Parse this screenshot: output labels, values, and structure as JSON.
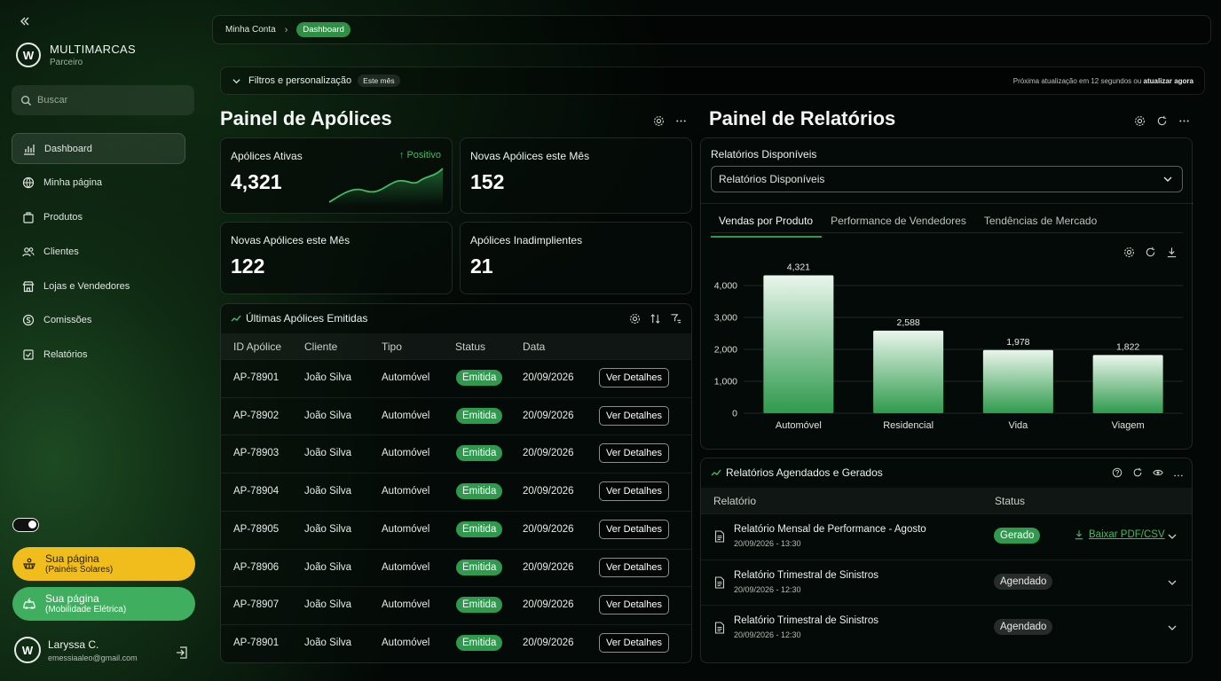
{
  "sidebar": {
    "brand_name": "MULTIMARCAS",
    "brand_sub": "Parceiro",
    "search_placeholder": "Buscar",
    "items": [
      {
        "label": "Dashboard",
        "icon": "chart-bars-icon"
      },
      {
        "label": "Minha página",
        "icon": "globe-icon"
      },
      {
        "label": "Produtos",
        "icon": "box-icon"
      },
      {
        "label": "Clientes",
        "icon": "users-icon"
      },
      {
        "label": "Lojas e Vendedores",
        "icon": "store-icon"
      },
      {
        "label": "Comissões",
        "icon": "coins-icon"
      },
      {
        "label": "Relatórios",
        "icon": "report-icon"
      }
    ],
    "active_item": "Dashboard",
    "promo1": {
      "title": "Sua página",
      "sub": "(Painéis Solares)"
    },
    "promo2": {
      "title": "Sua página",
      "sub": "(Mobilidade Elétrica)"
    },
    "user": {
      "name": "Laryssa C.",
      "email": "emessiaaleo@gmail.com"
    }
  },
  "breadcrumb": {
    "parent": "Minha Conta",
    "current": "Dashboard"
  },
  "filters": {
    "label": "Filtros e personalização",
    "chip": "Este mês",
    "refresh_note": "Próxima atualização em 12 segundos ou",
    "refresh_link": "atualizar agora"
  },
  "policies": {
    "title": "Painel de Apólices",
    "kpis": [
      {
        "label": "Apólices Ativas",
        "value": "4,321",
        "trend": "Positivo"
      },
      {
        "label": "Novas Apólices este Mês",
        "value": "152"
      },
      {
        "label": "Novas Apólices este Mês",
        "value": "122"
      },
      {
        "label": "Apólices Inadimplientes",
        "value": "21"
      }
    ],
    "table": {
      "title": "Últimas Apólices Emitidas",
      "columns": [
        "ID Apólice",
        "Cliente",
        "Tipo",
        "Status",
        "Data"
      ],
      "action_label": "Ver Detalhes",
      "rows": [
        {
          "id": "AP-78901",
          "client": "João Silva",
          "type": "Automóvel",
          "status": "Emitida",
          "date": "20/09/2026"
        },
        {
          "id": "AP-78902",
          "client": "João Silva",
          "type": "Automóvel",
          "status": "Emitida",
          "date": "20/09/2026"
        },
        {
          "id": "AP-78903",
          "client": "João Silva",
          "type": "Automóvel",
          "status": "Emitida",
          "date": "20/09/2026"
        },
        {
          "id": "AP-78904",
          "client": "João Silva",
          "type": "Automóvel",
          "status": "Emitida",
          "date": "20/09/2026"
        },
        {
          "id": "AP-78905",
          "client": "João Silva",
          "type": "Automóvel",
          "status": "Emitida",
          "date": "20/09/2026"
        },
        {
          "id": "AP-78906",
          "client": "João Silva",
          "type": "Automóvel",
          "status": "Emitida",
          "date": "20/09/2026"
        },
        {
          "id": "AP-78907",
          "client": "João Silva",
          "type": "Automóvel",
          "status": "Emitida",
          "date": "20/09/2026"
        },
        {
          "id": "AP-78901",
          "client": "João Silva",
          "type": "Automóvel",
          "status": "Emitida",
          "date": "20/09/2026"
        }
      ]
    }
  },
  "reports": {
    "title": "Painel de Relatórios",
    "available_label": "Relatórios Disponíveis",
    "select_value": "Relatórios Disponíveis",
    "tabs": [
      "Vendas por Produto",
      "Performance de Vendedores",
      "Tendências de Mercado"
    ],
    "active_tab": "Vendas por Produto",
    "scheduled": {
      "title": "Relatórios Agendados e Gerados",
      "columns": [
        "Relatório",
        "Status"
      ],
      "download_label": "Baixar PDF/CSV",
      "rows": [
        {
          "name": "Relatório Mensal de Performance - Agosto",
          "date": "20/09/2026 - 13:30",
          "status": "Gerado"
        },
        {
          "name": "Relatório Trimestral de Sinistros",
          "date": "20/09/2026 - 12:30",
          "status": "Agendado"
        },
        {
          "name": "Relatório Trimestral de Sinistros",
          "date": "20/09/2026 - 12:30",
          "status": "Agendado"
        }
      ]
    }
  },
  "colors": {
    "accent": "#2f9a4d",
    "accent_light": "#45b866",
    "promo_yellow": "#f0bd1c",
    "promo_green": "#3fae5e"
  },
  "chart_data": {
    "type": "bar",
    "categories": [
      "Automóvel",
      "Residencial",
      "Vida",
      "Viagem"
    ],
    "values": [
      4321,
      2588,
      1978,
      1822
    ],
    "value_labels": [
      "4,321",
      "2,588",
      "1,978",
      "1,822"
    ],
    "yticks": [
      "0",
      "1,000",
      "2,000",
      "3,000",
      "4,000"
    ],
    "ytick_values": [
      0,
      1000,
      2000,
      3000,
      4000
    ],
    "ylim": [
      0,
      4000
    ],
    "grid": true,
    "title": "",
    "xlabel": "",
    "ylabel": ""
  }
}
